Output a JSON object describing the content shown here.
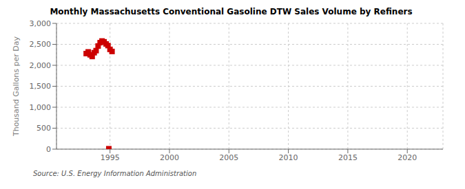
{
  "chart_data": {
    "type": "scatter",
    "title": "Monthly Massachusetts Conventional Gasoline DTW Sales Volume by Refiners",
    "y_label": "Thousand Gallons per Day",
    "source": "Source: U.S. Energy Information Administration",
    "color": "#cc0000",
    "marker": "square",
    "grid": true,
    "x": [
      1993.0,
      1993.17,
      1993.33,
      1993.5,
      1993.67,
      1993.83,
      1994.0,
      1994.17,
      1994.33,
      1994.5,
      1994.67,
      1994.83,
      1995.0,
      1995.17,
      1994.9
    ],
    "values": [
      2280,
      2320,
      2250,
      2210,
      2300,
      2350,
      2460,
      2540,
      2580,
      2560,
      2510,
      2470,
      2380,
      2330,
      10
    ],
    "xlim": [
      1990.5,
      2023
    ],
    "ylim": [
      0,
      3000
    ],
    "xticks": [
      1995,
      2000,
      2005,
      2010,
      2015,
      2020
    ],
    "yticks": [
      0,
      500,
      {
        "value": 1000,
        "label": "1,000"
      },
      {
        "value": 1500,
        "label": "1,500"
      },
      {
        "value": 2000,
        "label": "2,000"
      },
      {
        "value": 2500,
        "label": "2,500"
      },
      {
        "value": 3000,
        "label": "3,000"
      }
    ]
  }
}
